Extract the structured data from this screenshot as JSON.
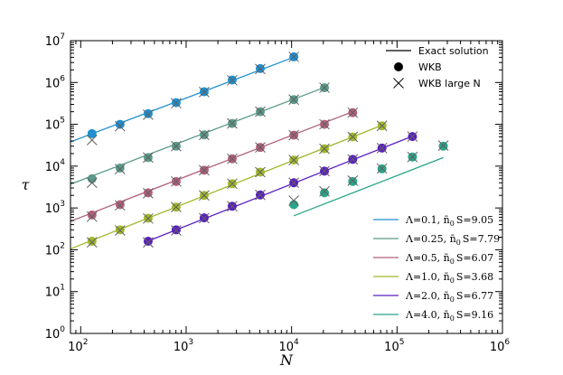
{
  "chart_data": {
    "type": "scatter",
    "xlabel": "N",
    "ylabel": "τ",
    "xscale": "log",
    "yscale": "log",
    "xlim": [
      80,
      1000000
    ],
    "ylim": [
      1,
      10000000
    ],
    "x_ticks": [
      {
        "value": 100,
        "base": "10",
        "exp": "2"
      },
      {
        "value": 1000,
        "base": "10",
        "exp": "3"
      },
      {
        "value": 10000,
        "base": "10",
        "exp": "4"
      },
      {
        "value": 100000,
        "base": "10",
        "exp": "5"
      },
      {
        "value": 1000000,
        "base": "10",
        "exp": "6"
      }
    ],
    "y_ticks": [
      {
        "value": 1,
        "base": "10",
        "exp": "0"
      },
      {
        "value": 10,
        "base": "10",
        "exp": "1"
      },
      {
        "value": 100,
        "base": "10",
        "exp": "2"
      },
      {
        "value": 1000,
        "base": "10",
        "exp": "3"
      },
      {
        "value": 10000,
        "base": "10",
        "exp": "4"
      },
      {
        "value": 100000,
        "base": "10",
        "exp": "5"
      },
      {
        "value": 1000000,
        "base": "10",
        "exp": "6"
      },
      {
        "value": 10000000,
        "base": "10",
        "exp": "7"
      }
    ],
    "marker_legend": [
      {
        "marker": "line",
        "label": "Exact solution"
      },
      {
        "marker": "dot",
        "label": "WKB"
      },
      {
        "marker": "x",
        "label": "WKB large N"
      }
    ],
    "series": [
      {
        "name": "Λ=0.1, n̄₀S=9.05",
        "label_main": "Λ=0.1, ",
        "label_nbar": "n̄",
        "label_sub": "0",
        "label_tail": "S=9.05",
        "color": "#1f8fd0",
        "line": {
          "x": [
            80,
            11000
          ],
          "y": [
            38000,
            4200000
          ]
        },
        "wkb": {
          "x": [
            128,
            236,
            436,
            804,
            1482,
            2735,
            5046,
            10500
          ],
          "y": [
            60000,
            100000,
            180000,
            330000,
            600000,
            1150000,
            2150000,
            4100000
          ]
        },
        "wkb_large_n": {
          "x": [
            128,
            236,
            436,
            804,
            1482,
            2735,
            5046,
            10500
          ],
          "y": [
            42000,
            90000,
            170000,
            320000,
            590000,
            1130000,
            2100000,
            4100000
          ]
        }
      },
      {
        "name": "Λ=0.25, n̄₀S=7.79",
        "label_main": "Λ=0.25, ",
        "label_nbar": "n̄",
        "label_sub": "0",
        "label_tail": "S=7.79",
        "color": "#5a9a8a",
        "line": {
          "x": [
            80,
            20500
          ],
          "y": [
            3700,
            760000
          ]
        },
        "wkb": {
          "x": [
            128,
            236,
            436,
            804,
            1482,
            2735,
            5046,
            10500,
            20500
          ],
          "y": [
            5000,
            9000,
            16000,
            30000,
            56000,
            105000,
            200000,
            390000,
            750000
          ]
        },
        "wkb_large_n": {
          "x": [
            128,
            236,
            436,
            804,
            1482,
            2735,
            5046,
            10500,
            20500
          ],
          "y": [
            4000,
            8500,
            16000,
            30000,
            56000,
            105000,
            200000,
            390000,
            750000
          ]
        }
      },
      {
        "name": "Λ=0.5, n̄₀S=6.07",
        "label_main": "Λ=0.5, ",
        "label_nbar": "n̄",
        "label_sub": "0",
        "label_tail": "S=6.07",
        "color": "#b0607a",
        "line": {
          "x": [
            80,
            38000
          ],
          "y": [
            480,
            200000
          ]
        },
        "wkb": {
          "x": [
            128,
            236,
            436,
            804,
            1482,
            2735,
            5046,
            10500,
            20500,
            38000
          ],
          "y": [
            680,
            1200,
            2300,
            4300,
            8000,
            15000,
            28000,
            55000,
            100000,
            190000
          ]
        },
        "wkb_large_n": {
          "x": [
            128,
            236,
            436,
            804,
            1482,
            2735,
            5046,
            10500,
            20500,
            38000
          ],
          "y": [
            620,
            1150,
            2250,
            4300,
            8000,
            15000,
            28000,
            55000,
            100000,
            190000
          ]
        }
      },
      {
        "name": "Λ=1.0, n̄₀S=3.68",
        "label_main": "Λ=1.0, ",
        "label_nbar": "n̄",
        "label_sub": "0",
        "label_tail": "S=3.68",
        "color": "#a0b82c",
        "line": {
          "x": [
            80,
            72000
          ],
          "y": [
            105,
            95000
          ]
        },
        "wkb": {
          "x": [
            128,
            236,
            436,
            804,
            1482,
            2735,
            5046,
            10500,
            20500,
            38000,
            72000
          ],
          "y": [
            160,
            300,
            570,
            1050,
            2000,
            3800,
            7200,
            14000,
            26000,
            50000,
            92000
          ]
        },
        "wkb_large_n": {
          "x": [
            128,
            236,
            436,
            804,
            1482,
            2735,
            5046,
            10500,
            20500,
            38000,
            72000
          ],
          "y": [
            150,
            290,
            560,
            1050,
            2000,
            3800,
            7200,
            14000,
            26000,
            50000,
            92000
          ]
        }
      },
      {
        "name": "Λ=2.0, n̄₀S=6.77",
        "label_main": "Λ=2.0, ",
        "label_nbar": "n̄",
        "label_sub": "0",
        "label_tail": "S=6.77",
        "color": "#5a1fc0",
        "line": {
          "x": [
            430,
            140000
          ],
          "y": [
            160,
            52000
          ]
        },
        "wkb": {
          "x": [
            436,
            804,
            1482,
            2735,
            5046,
            10500,
            20500,
            38000,
            72000,
            140000
          ],
          "y": [
            160,
            300,
            580,
            1100,
            2050,
            4000,
            7600,
            14500,
            27000,
            51000
          ]
        },
        "wkb_large_n": {
          "x": [
            436,
            804,
            1482,
            2735,
            5046,
            10500,
            20500,
            38000,
            72000,
            140000
          ],
          "y": [
            150,
            290,
            570,
            1100,
            2050,
            4000,
            7600,
            14500,
            27000,
            51000
          ]
        }
      },
      {
        "name": "Λ=4.0, n̄₀S=9.16",
        "label_main": "Λ=4.0, ",
        "label_nbar": "n̄",
        "label_sub": "0",
        "label_tail": "S=9.16",
        "color": "#2aa58a",
        "line": {
          "x": [
            10500,
            275000
          ],
          "y": [
            650,
            16000
          ]
        },
        "wkb": {
          "x": [
            10500,
            20500,
            38000,
            72000,
            140000,
            275000
          ],
          "y": [
            1200,
            2300,
            4300,
            8600,
            16500,
            30000
          ]
        },
        "wkb_large_n": {
          "x": [
            10500,
            20500,
            38000,
            72000,
            140000,
            275000
          ],
          "y": [
            1500,
            2500,
            4500,
            8800,
            16500,
            31000
          ]
        }
      }
    ]
  }
}
